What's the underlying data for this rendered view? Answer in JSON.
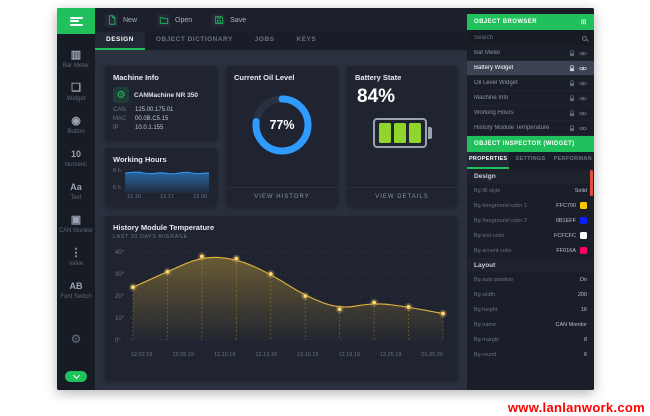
{
  "watermark": {
    "text": "www.lanlanwork.com",
    "color": "#FF0000"
  },
  "toolbar": {
    "new_label": "New",
    "open_label": "Open",
    "save_label": "Save"
  },
  "tabs": {
    "items": [
      {
        "label": "DESIGN"
      },
      {
        "label": "OBJECT DICTIONARY"
      },
      {
        "label": "JOBS"
      },
      {
        "label": "KEYS"
      }
    ],
    "active": "DESIGN"
  },
  "sidebar": {
    "items": [
      {
        "label": "Bar Meter",
        "glyph": "▥"
      },
      {
        "label": "Widget",
        "glyph": "❏"
      },
      {
        "label": "Button",
        "glyph": "◉"
      },
      {
        "label": "Numeric",
        "glyph": "10"
      },
      {
        "label": "Text",
        "glyph": "Aa"
      },
      {
        "label": "CAN Monitor",
        "glyph": "▣"
      },
      {
        "label": "Valve",
        "glyph": "⋮"
      },
      {
        "label": "Font Switch",
        "glyph": "AB"
      }
    ]
  },
  "cards": {
    "machine_info": {
      "title": "Machine Info",
      "name": "CANMachine NR 350",
      "rows": [
        {
          "label": "CAN",
          "value": "125.00.175.01"
        },
        {
          "label": "MAC",
          "value": "00.0B.C5.15"
        },
        {
          "label": "IP",
          "value": "10.0.1.155"
        }
      ]
    },
    "oil": {
      "title": "Current Oil Level",
      "percent": 77,
      "percent_label": "77%",
      "action": "VIEW HISTORY",
      "accent": "#2F9BFF"
    },
    "battery": {
      "title": "Battery State",
      "percent_label": "84%",
      "cells": 3,
      "action": "VIEW DETAILS",
      "accent": "#8FD52C"
    },
    "working_hours": {
      "title": "Working Hours",
      "y_labels": [
        "8 h",
        "6 h"
      ],
      "x_labels": [
        "12.10",
        "12.17",
        "12.00"
      ]
    }
  },
  "chart_data": [
    {
      "type": "area",
      "name": "working-hours-mini",
      "values": [
        6.6,
        7.4,
        6.1,
        7.0,
        6.0,
        7.3,
        6.2,
        6.8
      ],
      "ymax": 8,
      "color": "#2F9BFF"
    },
    {
      "type": "line",
      "name": "history-module-temperature",
      "title": "History Module Temperature",
      "subtitle": "LAST 30 DAYS AVERAGE",
      "values": [
        24,
        31,
        38,
        37,
        30,
        20,
        14,
        17,
        15,
        12
      ],
      "yticks": [
        40,
        30,
        20,
        10,
        0
      ],
      "ylabel_suffix": "°",
      "x_labels": [
        "12.02.19",
        "12.05.19",
        "12.10.19",
        "12.13.19",
        "12.16.19",
        "12.19.19",
        "12.25.19",
        "01.05.20"
      ],
      "color": "#D9AC3C",
      "dot_color": "#FFD977"
    }
  ],
  "object_browser": {
    "title": "OBJECT BROWSER",
    "search_placeholder": "Search",
    "items": [
      {
        "label": "Bar Meter",
        "active": false
      },
      {
        "label": "Battery Widget",
        "active": true
      },
      {
        "label": "Oil Level Widget",
        "active": false
      },
      {
        "label": "Machine Info",
        "active": false
      },
      {
        "label": "Working Hours",
        "active": false
      },
      {
        "label": "History Module Temperature",
        "active": false
      }
    ]
  },
  "inspector": {
    "title": "OBJECT INSPECTOR (WIDGET)",
    "tabs": [
      {
        "label": "PROPERTIES",
        "active": true
      },
      {
        "label": "SETTINGS",
        "active": false
      },
      {
        "label": "PERFORMAN",
        "active": false
      }
    ],
    "design": {
      "title": "Design",
      "rows": [
        {
          "label": "Bg fill style",
          "value": "Solid",
          "swatch": ""
        },
        {
          "label": "Bg foreground color 1",
          "value": "FFC700",
          "swatch": "#FFC700"
        },
        {
          "label": "Bg foreground color 2",
          "value": "0B1EFF",
          "swatch": "#0B1EFF"
        },
        {
          "label": "Bg text color",
          "value": "FCFCFC",
          "swatch": "#FCFCFC"
        },
        {
          "label": "Bg accent color",
          "value": "FF016A",
          "swatch": "#FF016A"
        }
      ]
    },
    "layout": {
      "title": "Layout",
      "rows": [
        {
          "label": "Bg auto position",
          "value": "On"
        },
        {
          "label": "Bg width",
          "value": "200"
        },
        {
          "label": "Bg height",
          "value": "16"
        },
        {
          "label": "Bg name",
          "value": "CAN Monitor"
        },
        {
          "label": "Bg margin",
          "value": "8"
        },
        {
          "label": "Bg round",
          "value": "6"
        }
      ]
    }
  }
}
